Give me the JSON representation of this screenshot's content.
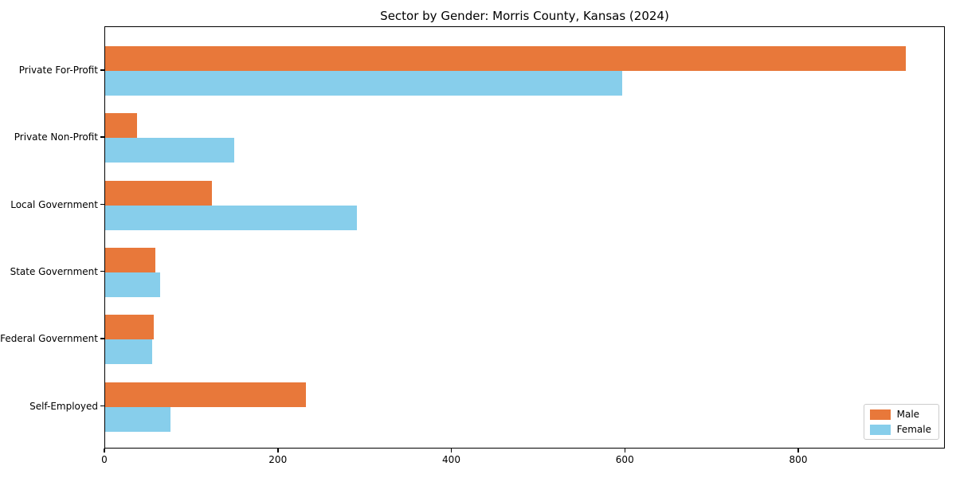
{
  "chart_data": {
    "type": "bar",
    "orientation": "horizontal",
    "title": "Sector by Gender: Morris County, Kansas (2024)",
    "categories": [
      "Private For-Profit",
      "Private Non-Profit",
      "Local Government",
      "State Government",
      "Federal Government",
      "Self-Employed"
    ],
    "series": [
      {
        "name": "Male",
        "color": "#e8783a",
        "values": [
          923,
          37,
          123,
          58,
          56,
          231
        ]
      },
      {
        "name": "Female",
        "color": "#87ceeb",
        "values": [
          596,
          149,
          290,
          63,
          54,
          75
        ]
      }
    ],
    "xlabel": "",
    "ylabel": "",
    "xlim": [
      0,
      969
    ],
    "xticks": [
      0,
      200,
      400,
      600,
      800
    ],
    "grid": false,
    "legend_position": "lower right",
    "colors": {
      "male_bar": "#e8783a",
      "female_bar": "#87ceeb",
      "axis": "#000000",
      "legend_border": "#cccccc",
      "background": "#ffffff"
    }
  }
}
